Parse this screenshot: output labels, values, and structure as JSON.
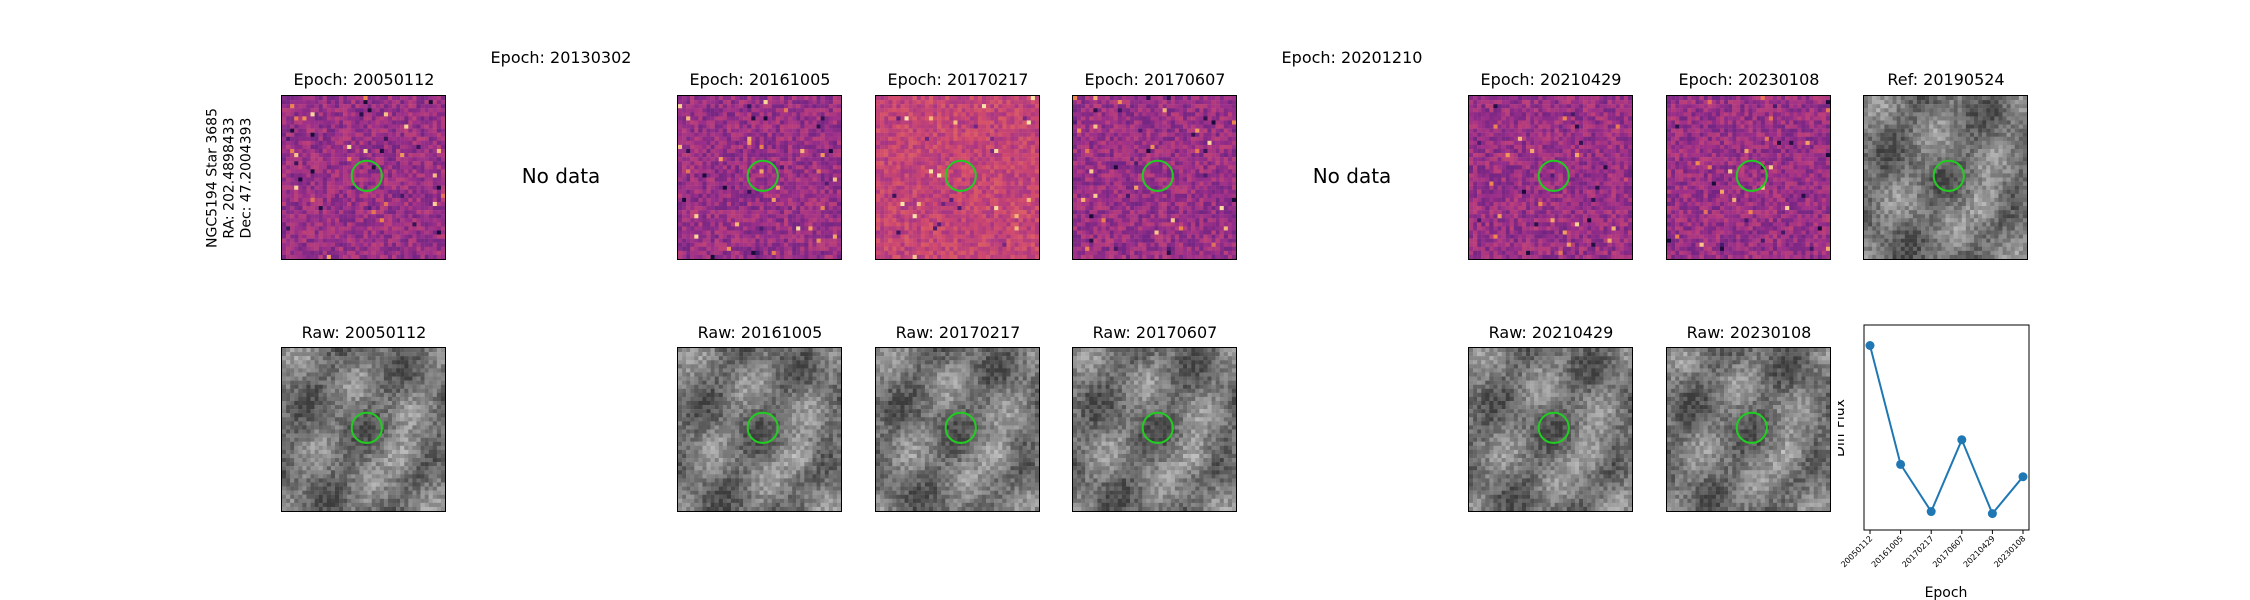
{
  "star_label": [
    "NGC5194 Star 3685",
    "RA: 202.4898433",
    "Dec: 47.2004393"
  ],
  "no_data_text": "No data",
  "top_titles": [
    "Epoch: 20050112",
    "Epoch: 20130302",
    "Epoch: 20161005",
    "Epoch: 20170217",
    "Epoch: 20170607",
    "Epoch: 20201210",
    "Epoch: 20210429",
    "Epoch: 20230108",
    "Ref: 20190524"
  ],
  "bottom_titles": [
    "Raw: 20050112",
    "Raw: 20161005",
    "Raw: 20170217",
    "Raw: 20170607",
    "Raw: 20210429",
    "Raw: 20230108"
  ],
  "colors": {
    "circle": "#22cc22",
    "line": "#1f77b4",
    "diff_cmap": [
      "#1a0b3a",
      "#5b1f7e",
      "#9b2f8a",
      "#d14a6e",
      "#f0884c",
      "#fde3a6"
    ],
    "raw_cmap": [
      "#3c3c3c",
      "#ffffff"
    ]
  },
  "chart_data": {
    "type": "line",
    "xlabel": "Epoch",
    "ylabel": "Diff Flux",
    "x": [
      "20050112",
      "20161005",
      "20170217",
      "20170607",
      "20210429",
      "20230108"
    ],
    "values": [
      1.0,
      0.42,
      0.19,
      0.54,
      0.18,
      0.36
    ],
    "ylim": [
      0.1,
      1.1
    ],
    "grid": false,
    "legend": "none"
  }
}
